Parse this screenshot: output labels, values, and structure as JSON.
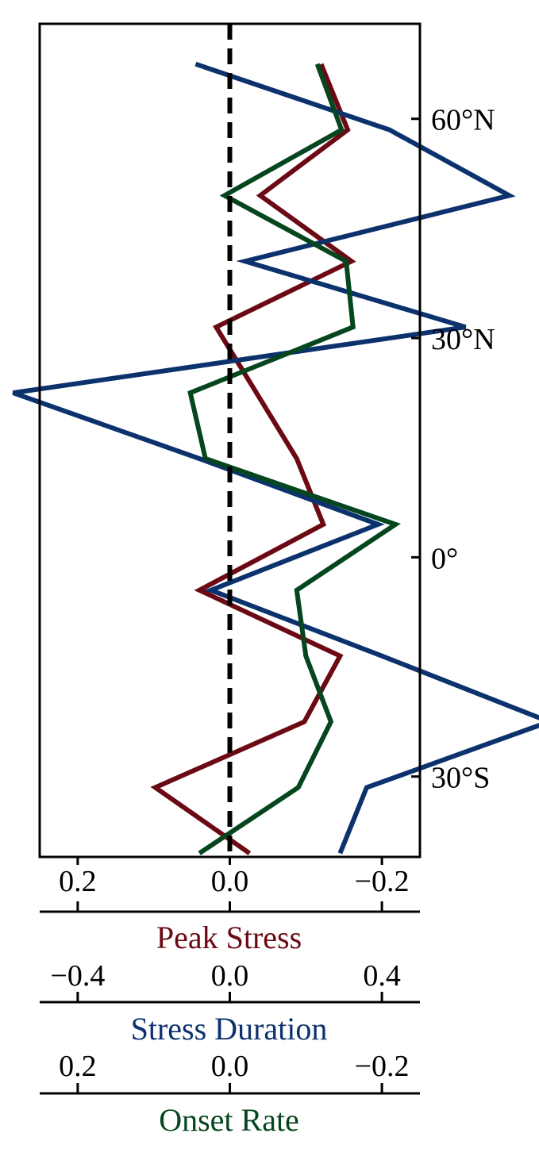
{
  "chart_data": {
    "type": "line",
    "orientation": "vertical-profile",
    "y_axis": {
      "ylim": [
        -41,
        73
      ],
      "ticks": [
        {
          "value": 60,
          "label": "60°N"
        },
        {
          "value": 30,
          "label": "30°N"
        },
        {
          "value": 0,
          "label": "0°"
        },
        {
          "value": -30,
          "label": "30°S"
        }
      ],
      "position": "right"
    },
    "zero_line": {
      "x": 0.0,
      "style": "dashed",
      "color": "#000000"
    },
    "x_axes": [
      {
        "key": "peak",
        "title": "Peak Stress",
        "color": "#6b0a14",
        "xlim": [
          0.25,
          -0.25
        ],
        "ticks": [
          {
            "value": 0.2,
            "label": "0.2"
          },
          {
            "value": 0.0,
            "label": "0.0"
          },
          {
            "value": -0.2,
            "label": "−0.2"
          }
        ]
      },
      {
        "key": "duration",
        "title": "Stress Duration",
        "color": "#0c326e",
        "xlim": [
          -0.5,
          0.5
        ],
        "ticks": [
          {
            "value": -0.4,
            "label": "−0.4"
          },
          {
            "value": 0.0,
            "label": "0.0"
          },
          {
            "value": 0.4,
            "label": "0.4"
          }
        ]
      },
      {
        "key": "onset",
        "title": "Onset Rate",
        "color": "#05461e",
        "xlim": [
          0.25,
          -0.25
        ],
        "ticks": [
          {
            "value": 0.2,
            "label": "0.2"
          },
          {
            "value": 0.0,
            "label": "0.0"
          },
          {
            "value": -0.2,
            "label": "−0.2"
          }
        ]
      }
    ],
    "series": [
      {
        "axis": "peak",
        "color": "#6b0a14",
        "points": [
          {
            "x": -0.12,
            "y": 67.5
          },
          {
            "x": -0.155,
            "y": 58.5
          },
          {
            "x": -0.04,
            "y": 49.5
          },
          {
            "x": -0.16,
            "y": 40.5
          },
          {
            "x": 0.018,
            "y": 31.5
          },
          {
            "x": -0.088,
            "y": 13.5
          },
          {
            "x": -0.123,
            "y": 4.5
          },
          {
            "x": 0.04,
            "y": -4.5
          },
          {
            "x": -0.145,
            "y": -13.5
          },
          {
            "x": -0.098,
            "y": -22.5
          },
          {
            "x": 0.098,
            "y": -31.5
          },
          {
            "x": -0.026,
            "y": -40.5
          }
        ]
      },
      {
        "axis": "duration",
        "color": "#0c326e",
        "points": [
          {
            "x": -0.09,
            "y": 67.5
          },
          {
            "x": 0.42,
            "y": 58.5
          },
          {
            "x": 0.735,
            "y": 49.5
          },
          {
            "x": 0.04,
            "y": 40.5
          },
          {
            "x": 0.62,
            "y": 31.5
          },
          {
            "x": -0.57,
            "y": 22.5
          },
          {
            "x": -0.08,
            "y": 13.5
          },
          {
            "x": 0.39,
            "y": 4.5
          },
          {
            "x": -0.05,
            "y": -4.5
          },
          {
            "x": 0.4,
            "y": -13.5
          },
          {
            "x": 0.84,
            "y": -22.5
          },
          {
            "x": 0.36,
            "y": -31.5
          },
          {
            "x": 0.29,
            "y": -40.5
          }
        ]
      },
      {
        "axis": "onset",
        "color": "#05461e",
        "points": [
          {
            "x": -0.115,
            "y": 67.5
          },
          {
            "x": -0.147,
            "y": 58.5
          },
          {
            "x": 0.007,
            "y": 49.5
          },
          {
            "x": -0.153,
            "y": 40.5
          },
          {
            "x": -0.162,
            "y": 31.5
          },
          {
            "x": 0.052,
            "y": 22.5
          },
          {
            "x": 0.032,
            "y": 13.5
          },
          {
            "x": -0.218,
            "y": 4.5
          },
          {
            "x": -0.088,
            "y": -4.5
          },
          {
            "x": -0.1,
            "y": -13.5
          },
          {
            "x": -0.133,
            "y": -22.5
          },
          {
            "x": -0.09,
            "y": -31.5
          },
          {
            "x": 0.04,
            "y": -40.5
          }
        ]
      }
    ]
  }
}
